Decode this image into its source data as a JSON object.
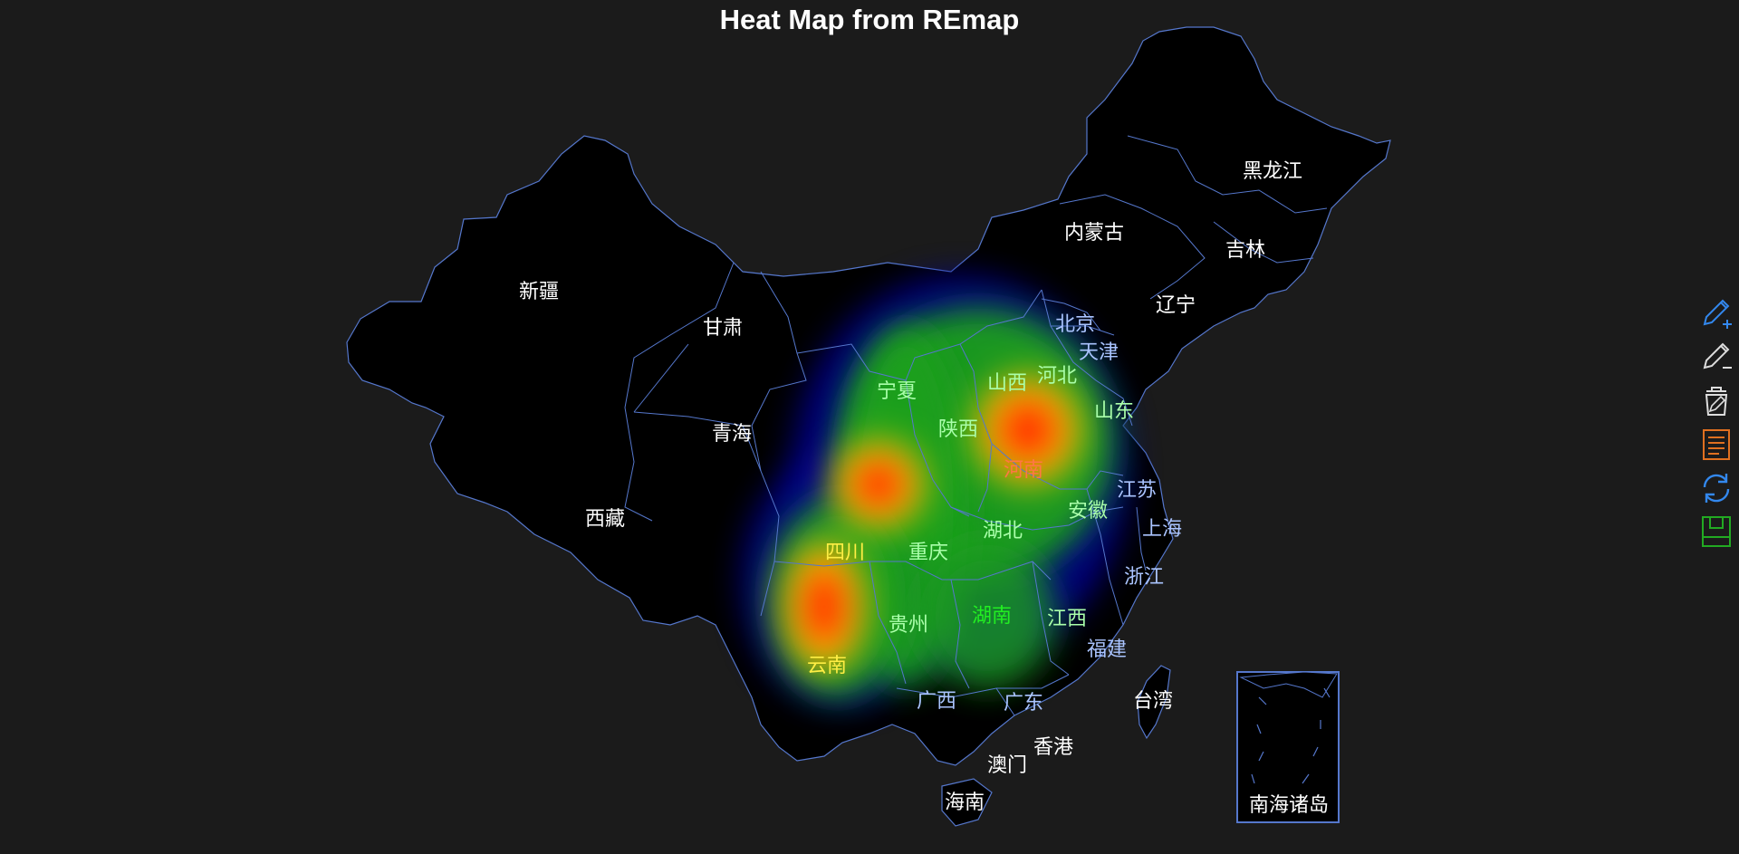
{
  "title": "Heat Map from REmap",
  "colors": {
    "background": "#1b1b1b",
    "region_fill": "#000000",
    "border": "#5577cc",
    "heat_low": "#00008b",
    "heat_mid": "#22cc22",
    "heat_high": "#ff2200"
  },
  "map": {
    "regions": [
      {
        "name": "黑龙江"
      },
      {
        "name": "内蒙古"
      },
      {
        "name": "吉林"
      },
      {
        "name": "新疆"
      },
      {
        "name": "辽宁"
      },
      {
        "name": "甘肃"
      },
      {
        "name": "北京"
      },
      {
        "name": "天津"
      },
      {
        "name": "宁夏"
      },
      {
        "name": "山西"
      },
      {
        "name": "河北"
      },
      {
        "name": "山东"
      },
      {
        "name": "青海"
      },
      {
        "name": "陕西"
      },
      {
        "name": "河南"
      },
      {
        "name": "江苏"
      },
      {
        "name": "西藏"
      },
      {
        "name": "安徽"
      },
      {
        "name": "湖北"
      },
      {
        "name": "上海"
      },
      {
        "name": "四川"
      },
      {
        "name": "重庆"
      },
      {
        "name": "浙江"
      },
      {
        "name": "湖南"
      },
      {
        "name": "江西"
      },
      {
        "name": "贵州"
      },
      {
        "name": "福建"
      },
      {
        "name": "云南"
      },
      {
        "name": "广西"
      },
      {
        "name": "广东"
      },
      {
        "name": "台湾"
      },
      {
        "name": "香港"
      },
      {
        "name": "澳门"
      },
      {
        "name": "海南"
      },
      {
        "name": "南海诸岛"
      }
    ],
    "heat_hotspots": [
      "河南",
      "山西",
      "四川",
      "云南"
    ]
  },
  "toolbox": [
    {
      "icon": "brush-add-icon",
      "color": "#3388ee"
    },
    {
      "icon": "brush-remove-icon",
      "color": "#dddddd"
    },
    {
      "icon": "clear-icon",
      "color": "#dddddd"
    },
    {
      "icon": "data-view-icon",
      "color": "#e07020"
    },
    {
      "icon": "restore-icon",
      "color": "#3388ee"
    },
    {
      "icon": "save-image-icon",
      "color": "#22aa22"
    }
  ]
}
